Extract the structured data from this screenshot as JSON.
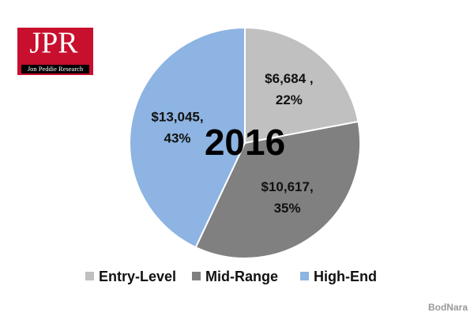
{
  "chart_data": {
    "type": "pie",
    "center_label": "2016",
    "categories": [
      "Entry-Level",
      "Mid-Range",
      "High-End"
    ],
    "values": [
      6684,
      10617,
      13045
    ],
    "value_labels": [
      "$6,684 ,",
      "$10,617,",
      "$13,045,"
    ],
    "percents": [
      22,
      35,
      43
    ],
    "percent_labels": [
      "22%",
      "35%",
      "43%"
    ],
    "colors": [
      "#c0c0c0",
      "#808080",
      "#8db4e2"
    ]
  },
  "logo": {
    "title": "JPR",
    "subtitle": "Jon Peddie Research"
  },
  "watermark": "BodNara"
}
